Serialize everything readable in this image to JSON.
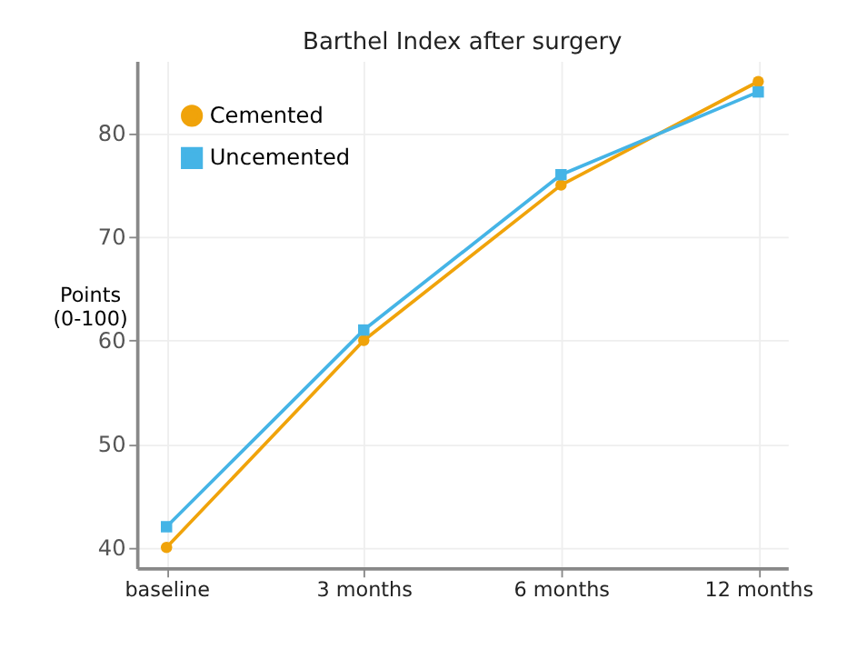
{
  "chart_data": {
    "type": "line",
    "title": "Barthel Index after surgery",
    "ylabel": "Points\n(0-100)",
    "categories": [
      "baseline",
      "3 months",
      "6 months",
      "12 months"
    ],
    "series": [
      {
        "name": "Cemented",
        "color": "#f0a30a",
        "marker": "circle",
        "values": [
          40,
          60,
          75,
          85
        ]
      },
      {
        "name": "Uncemented",
        "color": "#45b4e6",
        "marker": "square",
        "values": [
          42,
          61,
          76,
          84
        ]
      }
    ],
    "ylim": [
      38,
      87
    ],
    "yticks": [
      40,
      50,
      60,
      70,
      80
    ],
    "grid": true,
    "legend": "top left"
  }
}
